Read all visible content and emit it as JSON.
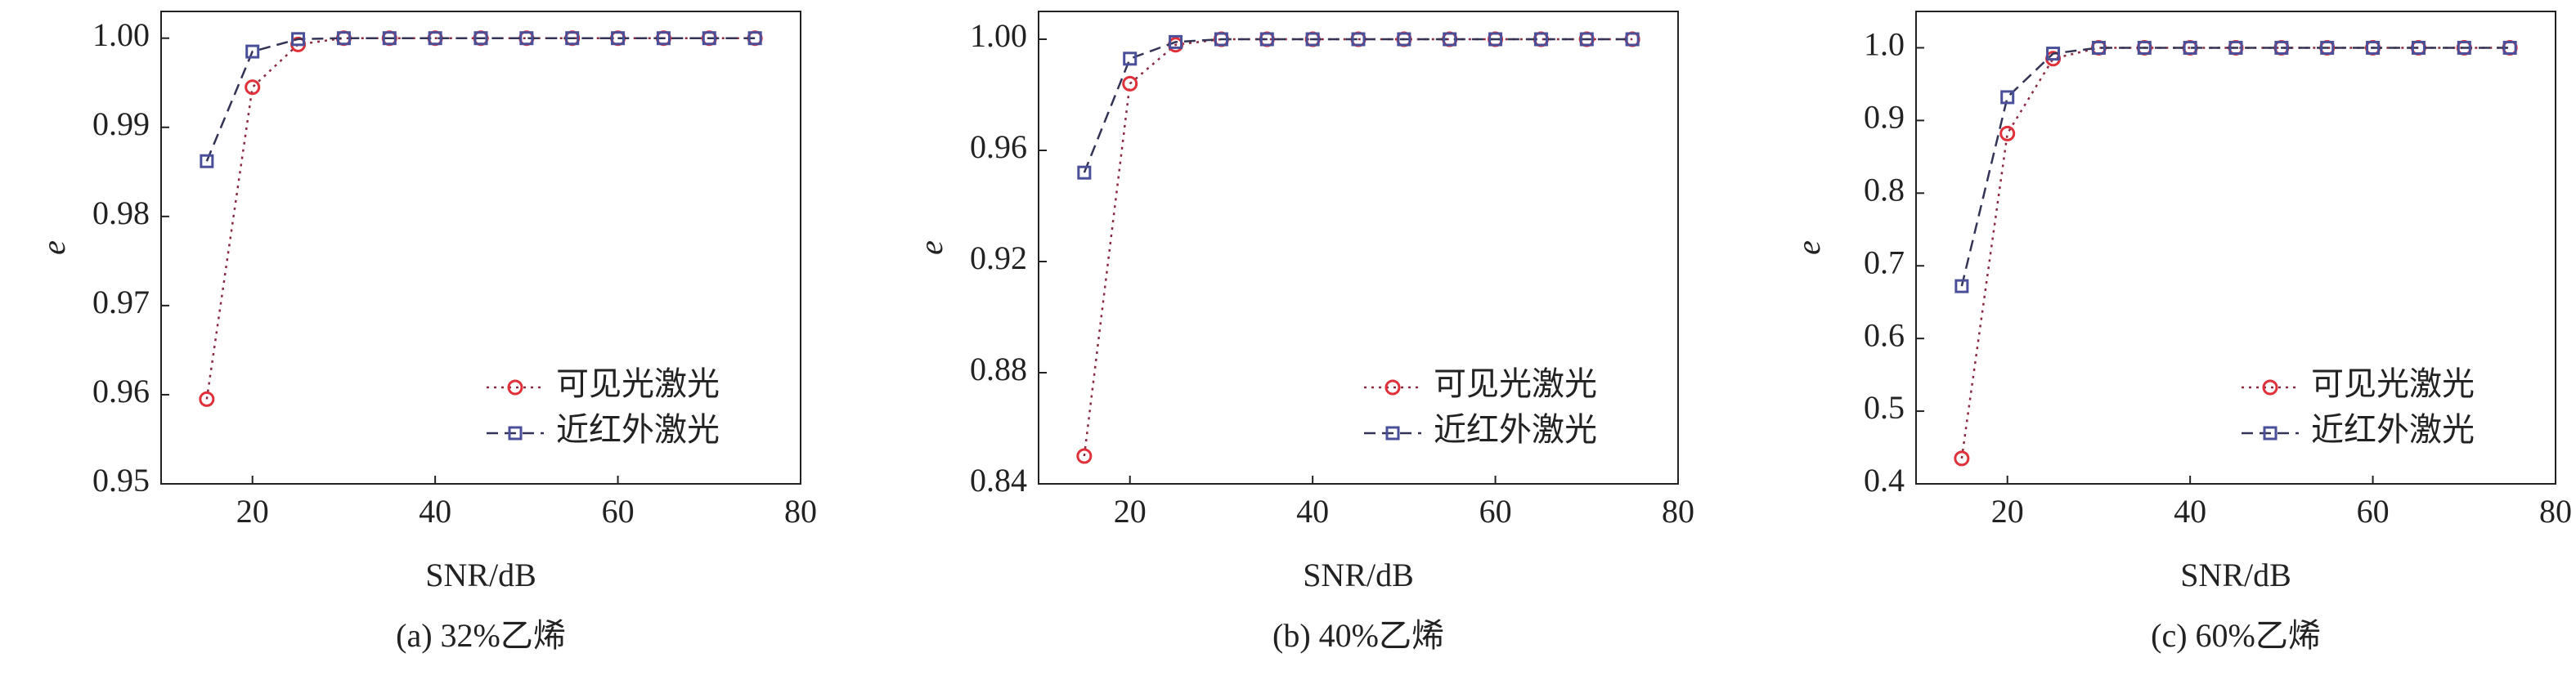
{
  "chart_data": [
    {
      "type": "line",
      "caption": "(a) 32%乙烯",
      "x_label": "SNR/dB",
      "y_label": "e",
      "x": [
        15,
        20,
        25,
        30,
        35,
        40,
        45,
        50,
        55,
        60,
        65,
        70,
        75
      ],
      "xlim": [
        10,
        80
      ],
      "xticks": [
        20,
        40,
        60,
        80
      ],
      "ylim": [
        0.95,
        1.003
      ],
      "yticks": [
        0.95,
        0.96,
        0.97,
        0.98,
        0.99,
        {
          "value": 1,
          "label": "1.00"
        }
      ],
      "legend": "lower right",
      "series": [
        {
          "name": "可见光激光",
          "color": "#e0303a",
          "marker": "circle",
          "linestyle": "dotted",
          "values": [
            0.9595,
            0.9945,
            0.9993,
            1,
            1,
            1,
            1,
            1,
            1,
            1,
            1,
            1,
            1
          ]
        },
        {
          "name": "近红外激光",
          "color": "#4a4f9a",
          "marker": "square",
          "linestyle": "dashed",
          "values": [
            0.9862,
            0.9985,
            0.9999,
            1,
            1,
            1,
            1,
            1,
            1,
            1,
            1,
            1,
            1
          ]
        }
      ]
    },
    {
      "type": "line",
      "caption": "(b) 40%乙烯",
      "x_label": "SNR/dB",
      "y_label": "e",
      "x": [
        15,
        20,
        25,
        30,
        35,
        40,
        45,
        50,
        55,
        60,
        65,
        70,
        75
      ],
      "xlim": [
        10,
        80
      ],
      "xticks": [
        20,
        40,
        60,
        80
      ],
      "ylim": [
        0.84,
        1.01
      ],
      "yticks": [
        0.84,
        0.88,
        0.92,
        0.96,
        {
          "value": 1,
          "label": "1.00"
        }
      ],
      "legend": "lower right",
      "series": [
        {
          "name": "可见光激光",
          "color": "#e0303a",
          "marker": "circle",
          "linestyle": "dotted",
          "values": [
            0.85,
            0.984,
            0.998,
            1,
            1,
            1,
            1,
            1,
            1,
            1,
            1,
            1,
            1
          ]
        },
        {
          "name": "近红外激光",
          "color": "#4a4f9a",
          "marker": "square",
          "linestyle": "dashed",
          "values": [
            0.952,
            0.993,
            0.999,
            1,
            1,
            1,
            1,
            1,
            1,
            1,
            1,
            1,
            1
          ]
        }
      ]
    },
    {
      "type": "line",
      "caption": "(c) 60%乙烯",
      "x_label": "SNR/dB",
      "y_label": "e",
      "x": [
        15,
        20,
        25,
        30,
        35,
        40,
        45,
        50,
        55,
        60,
        65,
        70,
        75
      ],
      "xlim": [
        10,
        80
      ],
      "xticks": [
        20,
        40,
        60,
        80
      ],
      "ylim": [
        0.4,
        1.05
      ],
      "yticks": [
        0.4,
        0.5,
        0.6,
        0.7,
        0.8,
        0.9,
        {
          "value": 1,
          "label": "1.0"
        }
      ],
      "legend": "lower right",
      "series": [
        {
          "name": "可见光激光",
          "color": "#e0303a",
          "marker": "circle",
          "linestyle": "dotted",
          "values": [
            0.435,
            0.882,
            0.985,
            1,
            1,
            1,
            1,
            1,
            1,
            1,
            1,
            1,
            1
          ]
        },
        {
          "name": "近红外激光",
          "color": "#4a4f9a",
          "marker": "square",
          "linestyle": "dashed",
          "values": [
            0.672,
            0.932,
            0.992,
            1,
            1,
            1,
            1,
            1,
            1,
            1,
            1,
            1,
            1
          ]
        }
      ]
    }
  ]
}
